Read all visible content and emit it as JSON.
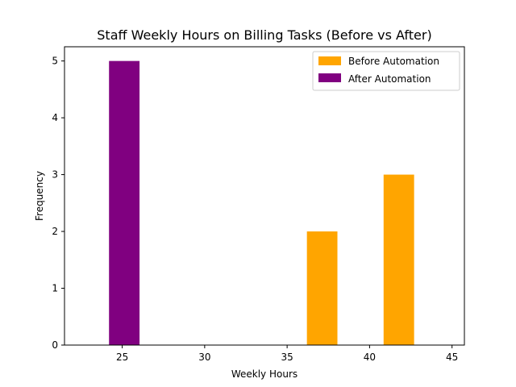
{
  "chart_data": {
    "type": "bar",
    "title": "Staff Weekly Hours on Billing Tasks (Before vs After)",
    "xlabel": "Weekly Hours",
    "ylabel": "Frequency",
    "xlim": [
      21.5,
      45.75
    ],
    "ylim": [
      0,
      5.25
    ],
    "xticks": [
      25,
      30,
      35,
      40,
      45
    ],
    "yticks": [
      0,
      1,
      2,
      3,
      4,
      5
    ],
    "grid": false,
    "legend_position": "top-right",
    "series": [
      {
        "name": "Before Automation",
        "color": "#ffa500",
        "bars": [
          {
            "x_start": 36.2,
            "x_end": 38.05,
            "value": 2
          },
          {
            "x_start": 40.85,
            "x_end": 42.7,
            "value": 3
          }
        ]
      },
      {
        "name": "After Automation",
        "color": "#800080",
        "bars": [
          {
            "x_start": 24.2,
            "x_end": 26.05,
            "value": 5
          }
        ]
      }
    ]
  }
}
